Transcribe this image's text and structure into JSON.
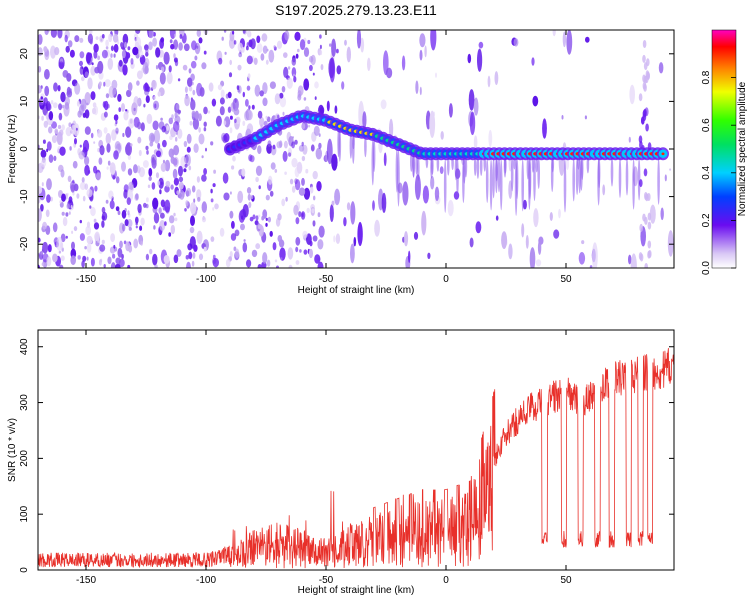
{
  "title": "S197.2025.279.13.23.E11",
  "colors": {
    "trace": "#e8302a",
    "frame": "#000000",
    "ridge_low": "#5010e0"
  },
  "chart_data": [
    {
      "type": "heatmap",
      "xlabel": "Height of straight line (km)",
      "ylabel": "Frequency (Hz)",
      "xlim": [
        -170,
        95
      ],
      "ylim": [
        -25,
        25
      ],
      "xticks": [
        -150,
        -100,
        -50,
        0,
        50
      ],
      "yticks": [
        -20,
        -10,
        0,
        10,
        20
      ],
      "colorbar": {
        "label": "Normalized spectral amplitude",
        "range": [
          0,
          1
        ],
        "ticks": [
          "0.0",
          "0.2",
          "0.4",
          "0.6",
          "0.8"
        ],
        "tick_values": [
          0.0,
          0.2,
          0.4,
          0.6,
          0.8
        ]
      },
      "ridge": {
        "description_points_km_hz": [
          [
            -90,
            0
          ],
          [
            -80,
            2
          ],
          [
            -70,
            5
          ],
          [
            -60,
            7
          ],
          [
            -50,
            6
          ],
          [
            -40,
            4
          ],
          [
            -30,
            3
          ],
          [
            -20,
            1
          ],
          [
            -10,
            -1
          ],
          [
            0,
            -1
          ],
          [
            20,
            -1
          ],
          [
            40,
            -1
          ],
          [
            60,
            -1
          ],
          [
            90,
            -1
          ]
        ]
      }
    },
    {
      "type": "line",
      "xlabel": "Height of straight line (km)",
      "ylabel": "SNR (10 * v/v)",
      "xlim": [
        -170,
        95
      ],
      "ylim": [
        0,
        430
      ],
      "xticks": [
        -150,
        -100,
        -50,
        0,
        50
      ],
      "yticks": [
        0,
        100,
        200,
        300,
        400
      ],
      "series": [
        {
          "name": "SNR",
          "envelope_km_snr": [
            [
              -170,
              20
            ],
            [
              -100,
              20
            ],
            [
              -90,
              30
            ],
            [
              -80,
              50
            ],
            [
              -70,
              60
            ],
            [
              -60,
              50
            ],
            [
              -50,
              40
            ],
            [
              -40,
              60
            ],
            [
              -30,
              70
            ],
            [
              -20,
              80
            ],
            [
              -10,
              90
            ],
            [
              0,
              90
            ],
            [
              10,
              100
            ],
            [
              15,
              150
            ],
            [
              20,
              200
            ],
            [
              25,
              240
            ],
            [
              30,
              270
            ],
            [
              35,
              290
            ],
            [
              40,
              300
            ],
            [
              45,
              310
            ],
            [
              50,
              320
            ],
            [
              55,
              300
            ],
            [
              60,
              310
            ],
            [
              65,
              330
            ],
            [
              70,
              340
            ],
            [
              75,
              345
            ],
            [
              80,
              350
            ],
            [
              85,
              360
            ],
            [
              90,
              355
            ],
            [
              95,
              370
            ]
          ]
        }
      ]
    }
  ]
}
